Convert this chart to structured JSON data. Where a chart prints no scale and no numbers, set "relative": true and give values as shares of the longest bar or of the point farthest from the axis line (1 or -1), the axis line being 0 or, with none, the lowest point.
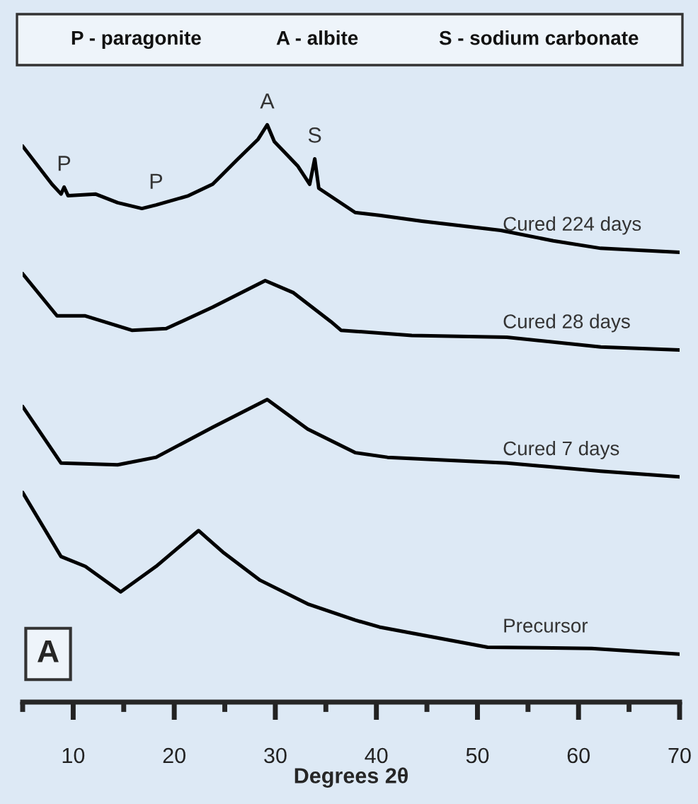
{
  "chart_data": {
    "type": "line",
    "relative": true,
    "xlabel": "Degrees 2θ",
    "xlim": [
      5,
      70
    ],
    "xticks": [
      {
        "value": 5,
        "label": null
      },
      10,
      {
        "value": 15,
        "label": null
      },
      20,
      {
        "value": 25,
        "label": null
      },
      30,
      {
        "value": 35,
        "label": null
      },
      40,
      {
        "value": 45,
        "label": null
      },
      50,
      {
        "value": 55,
        "label": null
      },
      60,
      {
        "value": 65,
        "label": null
      },
      70
    ],
    "grid": false,
    "legend": false,
    "marker": "none",
    "line_style": "solid",
    "annotations": [
      "P - paragonite",
      "A - albite",
      "S - sodium carbonate",
      "A",
      {
        "text": "P",
        "x": 9.1,
        "y": 0.892
      },
      {
        "text": "P",
        "x": 18.2,
        "y": 0.861
      },
      {
        "text": "A",
        "x": 29.2,
        "y": 1.0
      },
      {
        "text": "S",
        "x": 33.9,
        "y": 0.941
      }
    ],
    "series": [
      {
        "name": "Cured 224 days",
        "color": "#000000",
        "x": [
          5,
          7.9,
          8.8,
          9.1,
          9.5,
          12.2,
          14.4,
          16.8,
          18.2,
          21.4,
          23.8,
          26.2,
          28.3,
          29.2,
          29.9,
          32.2,
          33.4,
          33.9,
          34.3,
          37.9,
          40.3,
          44.5,
          52.3,
          57.5,
          62.2,
          70
        ],
        "values": [
          0.963,
          0.897,
          0.88,
          0.892,
          0.877,
          0.88,
          0.865,
          0.855,
          0.861,
          0.877,
          0.897,
          0.939,
          0.975,
          1.0,
          0.971,
          0.929,
          0.897,
          0.941,
          0.89,
          0.848,
          0.843,
          0.833,
          0.817,
          0.799,
          0.786,
          0.779
        ]
      },
      {
        "name": "Cured 28 days",
        "color": "#000000",
        "x": [
          5,
          8.4,
          11.2,
          15.8,
          19.2,
          23.8,
          29.0,
          31.8,
          35.5,
          36.5,
          43.5,
          52.9,
          62.2,
          70
        ],
        "values": [
          0.742,
          0.669,
          0.669,
          0.644,
          0.647,
          0.684,
          0.73,
          0.709,
          0.659,
          0.644,
          0.635,
          0.632,
          0.615,
          0.61
        ]
      },
      {
        "name": "Cured 7 days",
        "color": "#000000",
        "x": [
          5,
          8.8,
          14.4,
          18.2,
          23.8,
          29.2,
          33.2,
          37.9,
          41.1,
          52.9,
          62.2,
          70
        ],
        "values": [
          0.512,
          0.414,
          0.411,
          0.424,
          0.476,
          0.524,
          0.473,
          0.432,
          0.424,
          0.414,
          0.4,
          0.39
        ]
      },
      {
        "name": "Precursor",
        "color": "#000000",
        "x": [
          5,
          8.8,
          11.2,
          14.7,
          18.2,
          22.4,
          24.8,
          28.5,
          33.2,
          37.9,
          40.3,
          51.0,
          61.3,
          70
        ],
        "values": [
          0.363,
          0.252,
          0.235,
          0.191,
          0.235,
          0.297,
          0.26,
          0.211,
          0.17,
          0.142,
          0.13,
          0.095,
          0.093,
          0.083
        ]
      }
    ]
  }
}
